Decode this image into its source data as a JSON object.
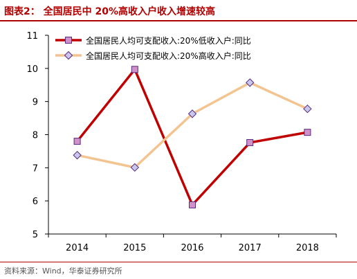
{
  "header": {
    "title": "图表2：  全国居民中 20%高收入户收入增速较高"
  },
  "footer": {
    "source": "资料来源：Wind，华泰证券研究所"
  },
  "colors": {
    "title": "#b20000",
    "low_series": "#c00000",
    "high_series": "#f4c490",
    "marker_low_fill": "#d090c8",
    "marker_high_fill": "#c8c8ec",
    "marker_edge": "#5a2a80"
  },
  "chart_data": {
    "type": "line",
    "categories": [
      "2014",
      "2015",
      "2016",
      "2017",
      "2018"
    ],
    "ylim": [
      5,
      11
    ],
    "yticks": [
      "5",
      "6",
      "7",
      "8",
      "9",
      "10",
      "11"
    ],
    "grid": false,
    "legend_position": "top-left",
    "series": [
      {
        "name": "全国居民人均可支配收入:20%低收入户:同比",
        "values": [
          7.8,
          9.97,
          5.88,
          7.76,
          8.07
        ]
      },
      {
        "name": "全国居民人均可支配收入:20%高收入户:同比",
        "values": [
          7.38,
          7.01,
          8.63,
          9.57,
          8.78
        ]
      }
    ]
  }
}
